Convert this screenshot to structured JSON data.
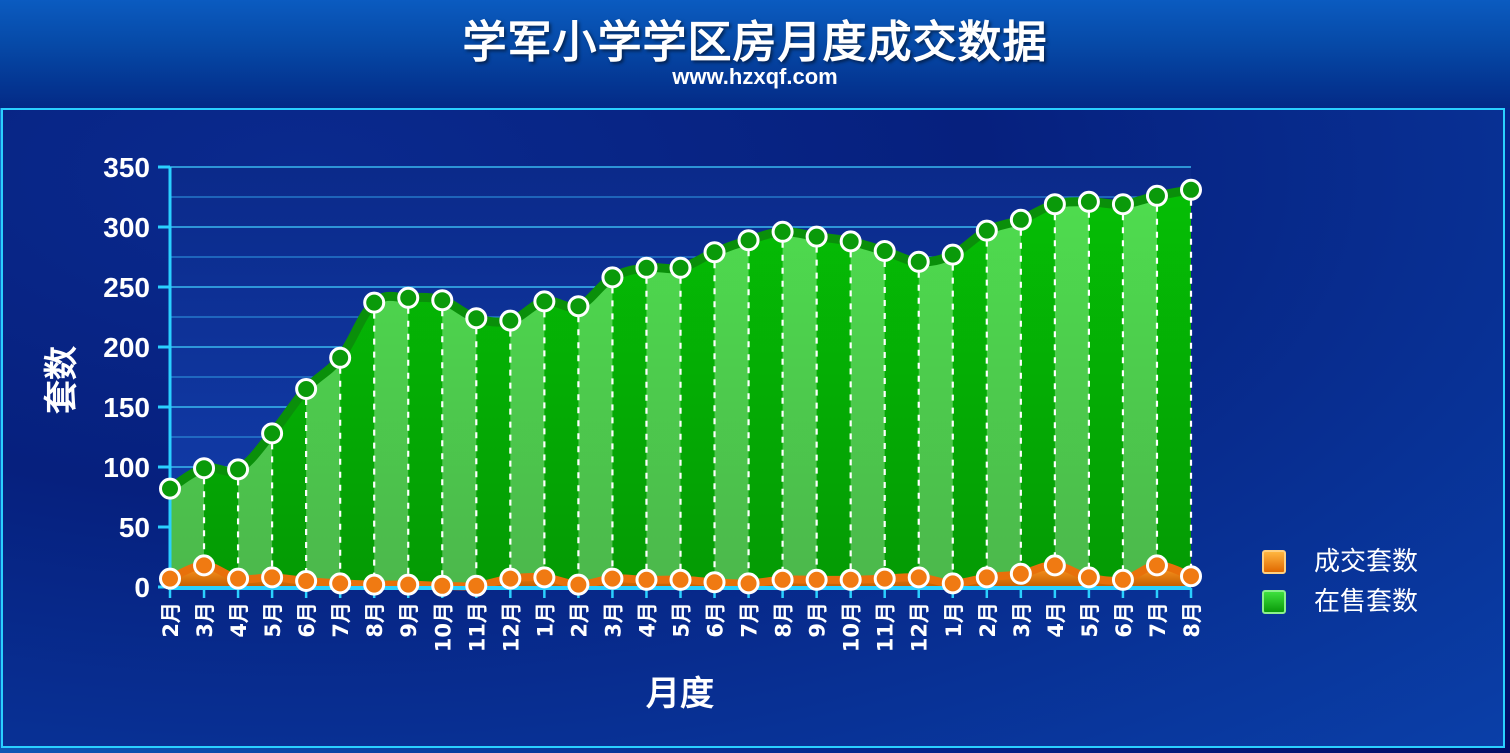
{
  "title": "学军小学学区房月度成交数据",
  "subtitle": "www.hzxqf.com",
  "chart_data": {
    "type": "area",
    "xlabel": "月度",
    "ylabel": "套数",
    "ylim": [
      0,
      350
    ],
    "yticks": [
      0,
      50,
      100,
      150,
      200,
      250,
      300,
      350
    ],
    "categories": [
      "2月",
      "3月",
      "4月",
      "5月",
      "6月",
      "7月",
      "8月",
      "9月",
      "10月",
      "11月",
      "12月",
      "1月",
      "2月",
      "3月",
      "4月",
      "5月",
      "6月",
      "7月",
      "8月",
      "9月",
      "10月",
      "11月",
      "12月",
      "1月",
      "2月",
      "3月",
      "4月",
      "5月",
      "6月",
      "7月",
      "8月"
    ],
    "series": [
      {
        "name": "成交套数",
        "color": "#f07a12",
        "values": [
          7,
          18,
          7,
          8,
          5,
          3,
          2,
          2,
          1,
          1,
          7,
          8,
          2,
          7,
          6,
          6,
          4,
          3,
          6,
          6,
          6,
          7,
          8,
          3,
          8,
          11,
          18,
          8,
          6,
          18,
          9
        ]
      },
      {
        "name": "在售套数",
        "color": "#12c412",
        "values": [
          82,
          99,
          98,
          128,
          165,
          191,
          237,
          241,
          239,
          224,
          222,
          238,
          234,
          258,
          266,
          266,
          279,
          289,
          296,
          292,
          288,
          280,
          271,
          277,
          297,
          306,
          319,
          321,
          319,
          326,
          331
        ]
      }
    ],
    "grid": true,
    "legend": "right"
  }
}
